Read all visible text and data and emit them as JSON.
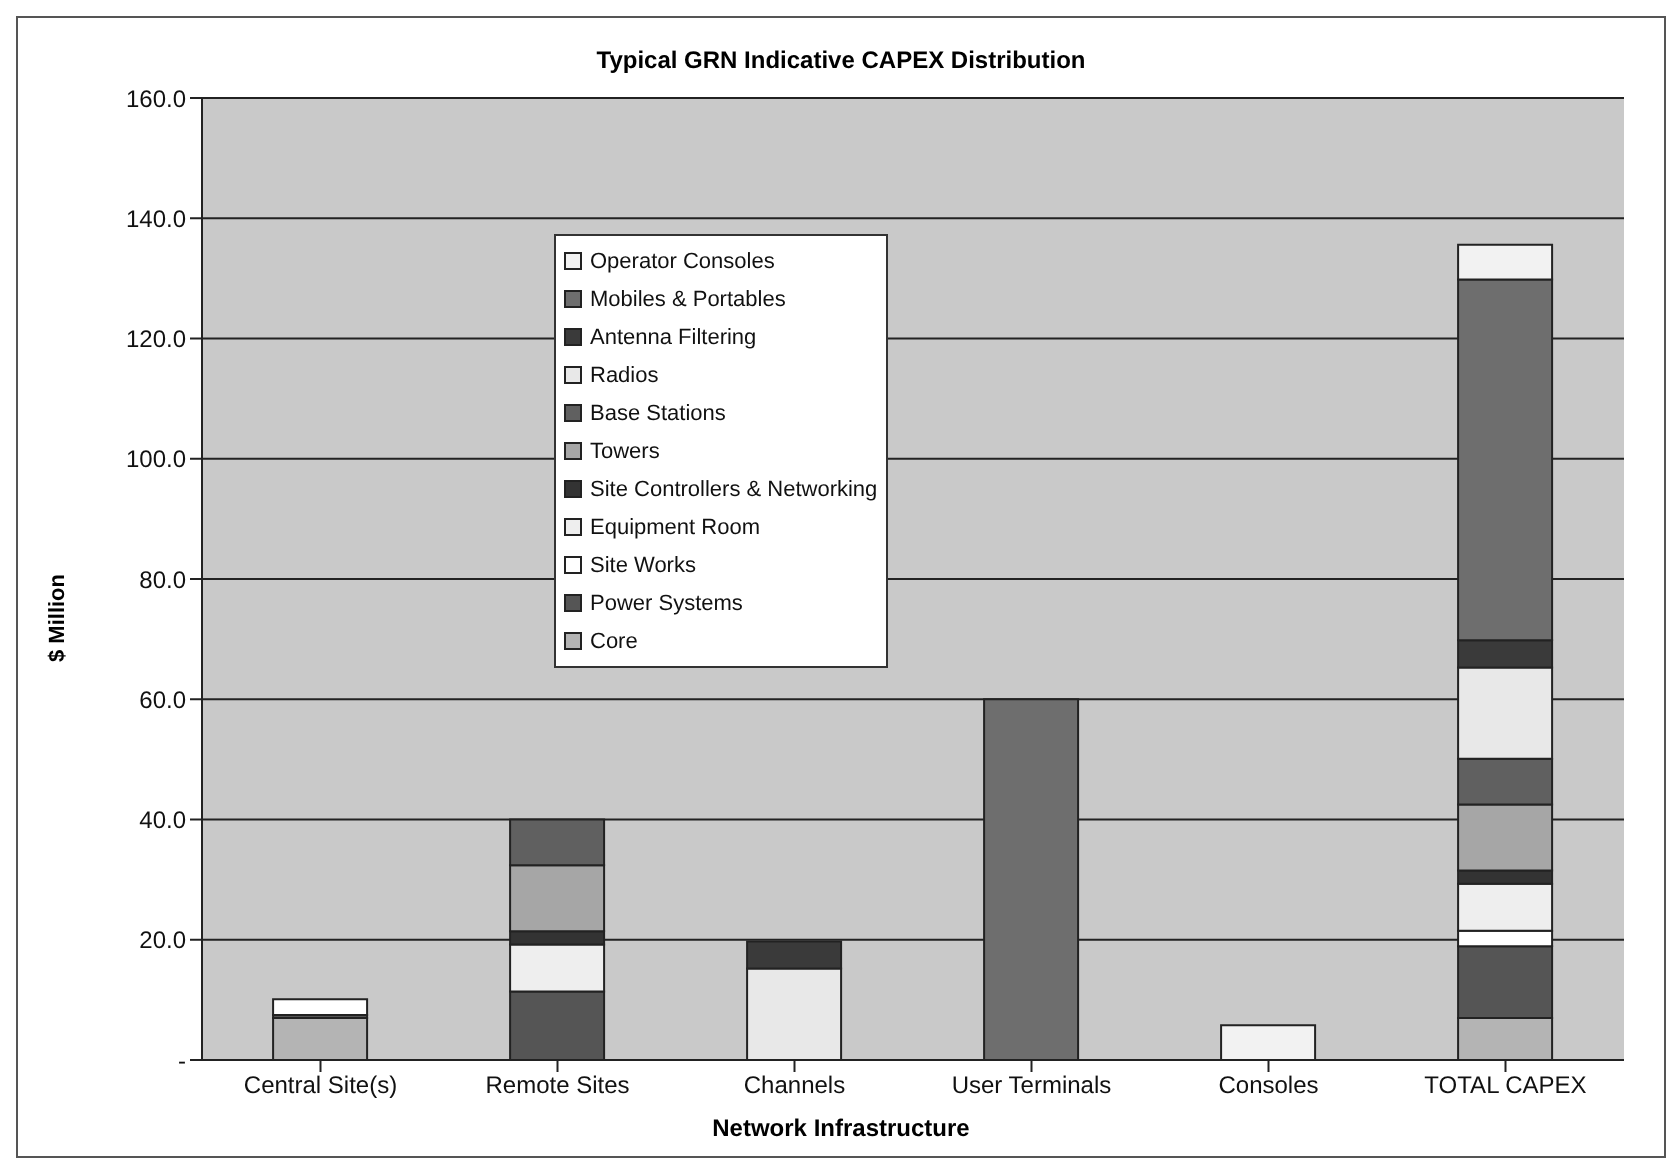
{
  "chart_data": {
    "type": "bar",
    "title": "Typical GRN Indicative CAPEX Distribution",
    "xlabel": "Network Infrastructure",
    "ylabel": "$ Million",
    "categories": [
      "Central Site(s)",
      "Remote Sites",
      "Channels",
      "User Terminals",
      "Consoles",
      "TOTAL CAPEX"
    ],
    "stacked": true,
    "grid": "y",
    "legend": "top left",
    "ylim": [
      0,
      160
    ],
    "yticks": [
      {
        "value": 0,
        "label": "-"
      },
      {
        "value": 20,
        "label": "20.0"
      },
      {
        "value": 40,
        "label": "40.0"
      },
      {
        "value": 60,
        "label": "60.0"
      },
      {
        "value": 80,
        "label": "80.0"
      },
      {
        "value": 100,
        "label": "100.0"
      },
      {
        "value": 120,
        "label": "120.0"
      },
      {
        "value": 140,
        "label": "140.0"
      },
      {
        "value": 160,
        "label": "160.0"
      }
    ],
    "series": [
      {
        "name": "Core",
        "color": "#b4b4b4",
        "values": [
          7.0,
          null,
          null,
          null,
          null,
          7.0
        ]
      },
      {
        "name": "Power Systems",
        "color": "#555555",
        "values": [
          0.5,
          11.4,
          null,
          null,
          null,
          11.9
        ]
      },
      {
        "name": "Site Works",
        "color": "#ffffff",
        "values": [
          2.6,
          null,
          null,
          null,
          null,
          2.6
        ]
      },
      {
        "name": "Equipment Room",
        "color": "#eeeeee",
        "values": [
          null,
          7.8,
          null,
          null,
          null,
          7.8
        ]
      },
      {
        "name": "Site Controllers & Networking",
        "color": "#333333",
        "values": [
          null,
          2.2,
          null,
          null,
          null,
          2.2
        ]
      },
      {
        "name": "Towers",
        "color": "#a6a6a6",
        "values": [
          null,
          11.0,
          null,
          null,
          null,
          11.0
        ]
      },
      {
        "name": "Base Stations",
        "color": "#606060",
        "values": [
          null,
          7.6,
          null,
          null,
          null,
          7.6
        ]
      },
      {
        "name": "Radios",
        "color": "#e8e8e8",
        "values": [
          null,
          null,
          15.2,
          null,
          null,
          15.2
        ]
      },
      {
        "name": "Antenna Filtering",
        "color": "#3a3a3a",
        "values": [
          null,
          null,
          4.5,
          null,
          null,
          4.5
        ]
      },
      {
        "name": "Mobiles & Portables",
        "color": "#6e6e6e",
        "values": [
          null,
          null,
          null,
          60,
          null,
          60
        ]
      },
      {
        "name": "Operator Consoles",
        "color": "#f2f2f2",
        "values": [
          null,
          null,
          null,
          null,
          5.8,
          5.8
        ]
      }
    ]
  }
}
